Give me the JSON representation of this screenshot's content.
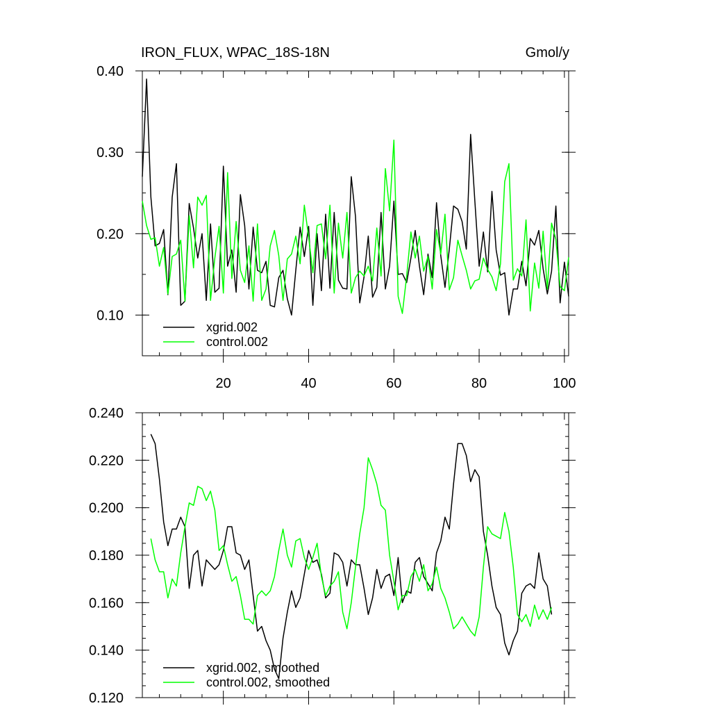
{
  "chart_data": [
    {
      "type": "line",
      "title": "IRON_FLUX, WPAC_18S-18N",
      "units": "Gmol/y",
      "xlim": [
        1,
        101
      ],
      "ylim": [
        0.05,
        0.4
      ],
      "x_ticks": [
        20,
        40,
        60,
        80,
        100
      ],
      "y_ticks": [
        "0.10",
        "0.20",
        "0.30",
        "0.40"
      ],
      "legend_position": "bottom-left",
      "series": [
        {
          "name": "xgrid.002",
          "color": "#000000",
          "x_start": 1,
          "values": [
            0.27,
            0.39,
            0.245,
            0.185,
            0.188,
            0.205,
            0.125,
            0.245,
            0.286,
            0.112,
            0.117,
            0.237,
            0.207,
            0.17,
            0.2,
            0.118,
            0.212,
            0.128,
            0.133,
            0.283,
            0.16,
            0.18,
            0.128,
            0.248,
            0.21,
            0.132,
            0.208,
            0.155,
            0.152,
            0.166,
            0.112,
            0.11,
            0.146,
            0.155,
            0.12,
            0.1,
            0.155,
            0.208,
            0.172,
            0.209,
            0.112,
            0.2,
            0.13,
            0.224,
            0.133,
            0.226,
            0.143,
            0.133,
            0.132,
            0.27,
            0.221,
            0.115,
            0.147,
            0.197,
            0.122,
            0.134,
            0.226,
            0.132,
            0.16,
            0.24,
            0.15,
            0.151,
            0.14,
            0.17,
            0.204,
            0.16,
            0.125,
            0.175,
            0.146,
            0.238,
            0.173,
            0.134,
            0.181,
            0.234,
            0.23,
            0.215,
            0.181,
            0.322,
            0.24,
            0.16,
            0.202,
            0.153,
            0.252,
            0.18,
            0.149,
            0.152,
            0.1,
            0.132,
            0.132,
            0.166,
            0.136,
            0.194,
            0.186,
            0.204,
            0.157,
            0.126,
            0.154,
            0.234,
            0.115,
            0.165,
            0.123
          ]
        },
        {
          "name": "control.002",
          "color": "#00ff00",
          "x_start": 1,
          "values": [
            0.24,
            0.21,
            0.193,
            0.195,
            0.16,
            0.183,
            0.126,
            0.172,
            0.175,
            0.192,
            0.117,
            0.222,
            0.158,
            0.245,
            0.235,
            0.247,
            0.118,
            0.17,
            0.209,
            0.127,
            0.275,
            0.145,
            0.215,
            0.155,
            0.14,
            0.185,
            0.117,
            0.212,
            0.118,
            0.132,
            0.185,
            0.204,
            0.173,
            0.118,
            0.169,
            0.175,
            0.197,
            0.163,
            0.235,
            0.196,
            0.152,
            0.21,
            0.212,
            0.169,
            0.235,
            0.127,
            0.213,
            0.17,
            0.226,
            0.127,
            0.146,
            0.154,
            0.148,
            0.16,
            0.142,
            0.207,
            0.148,
            0.28,
            0.228,
            0.315,
            0.123,
            0.102,
            0.148,
            0.202,
            0.17,
            0.197,
            0.154,
            0.172,
            0.132,
            0.205,
            0.175,
            0.224,
            0.131,
            0.146,
            0.192,
            0.173,
            0.155,
            0.132,
            0.142,
            0.144,
            0.17,
            0.156,
            0.147,
            0.13,
            0.163,
            0.264,
            0.286,
            0.143,
            0.157,
            0.148,
            0.217,
            0.105,
            0.164,
            0.133,
            0.203,
            0.132,
            0.213,
            0.193,
            0.135,
            0.13,
            0.171
          ]
        }
      ],
      "legend": [
        {
          "label": "xgrid.002",
          "color": "#000000"
        },
        {
          "label": "control.002",
          "color": "#00ff00"
        }
      ]
    },
    {
      "type": "line",
      "xlim": [
        1,
        101
      ],
      "ylim": [
        0.12,
        0.24
      ],
      "y_ticks": [
        "0.120",
        "0.140",
        "0.160",
        "0.180",
        "0.200",
        "0.220",
        "0.240"
      ],
      "legend_position": "bottom-left",
      "series": [
        {
          "name": "xgrid.002, smoothed",
          "color": "#000000",
          "x_start": 3,
          "values": [
            0.231,
            0.227,
            0.212,
            0.194,
            0.184,
            0.191,
            0.191,
            0.196,
            0.192,
            0.166,
            0.18,
            0.182,
            0.167,
            0.178,
            0.176,
            0.174,
            0.176,
            0.182,
            0.192,
            0.192,
            0.181,
            0.18,
            0.174,
            0.178,
            0.163,
            0.148,
            0.15,
            0.144,
            0.14,
            0.132,
            0.128,
            0.145,
            0.156,
            0.165,
            0.158,
            0.162,
            0.172,
            0.182,
            0.177,
            0.178,
            0.172,
            0.162,
            0.164,
            0.181,
            0.18,
            0.177,
            0.167,
            0.178,
            0.176,
            0.176,
            0.166,
            0.155,
            0.162,
            0.174,
            0.166,
            0.171,
            0.172,
            0.163,
            0.179,
            0.16,
            0.165,
            0.164,
            0.177,
            0.179,
            0.171,
            0.168,
            0.165,
            0.181,
            0.186,
            0.196,
            0.191,
            0.21,
            0.227,
            0.227,
            0.222,
            0.211,
            0.216,
            0.213,
            0.19,
            0.18,
            0.167,
            0.158,
            0.155,
            0.143,
            0.138,
            0.144,
            0.148,
            0.164,
            0.167,
            0.168,
            0.166,
            0.181,
            0.17,
            0.167,
            0.155
          ]
        },
        {
          "name": "control.002, smoothed",
          "color": "#00ff00",
          "x_start": 3,
          "values": [
            0.187,
            0.178,
            0.173,
            0.173,
            0.162,
            0.17,
            0.167,
            0.181,
            0.192,
            0.202,
            0.201,
            0.209,
            0.208,
            0.203,
            0.207,
            0.199,
            0.182,
            0.184,
            0.176,
            0.169,
            0.171,
            0.163,
            0.153,
            0.153,
            0.151,
            0.163,
            0.165,
            0.163,
            0.165,
            0.171,
            0.182,
            0.191,
            0.18,
            0.175,
            0.186,
            0.187,
            0.179,
            0.174,
            0.179,
            0.185,
            0.171,
            0.163,
            0.167,
            0.169,
            0.173,
            0.156,
            0.149,
            0.16,
            0.175,
            0.189,
            0.2,
            0.221,
            0.216,
            0.21,
            0.201,
            0.199,
            0.18,
            0.169,
            0.157,
            0.163,
            0.163,
            0.171,
            0.174,
            0.169,
            0.176,
            0.165,
            0.168,
            0.175,
            0.166,
            0.162,
            0.156,
            0.149,
            0.151,
            0.154,
            0.151,
            0.148,
            0.146,
            0.154,
            0.175,
            0.192,
            0.189,
            0.188,
            0.187,
            0.198,
            0.19,
            0.175,
            0.155,
            0.152,
            0.155,
            0.15,
            0.159,
            0.153,
            0.157,
            0.153,
            0.158
          ]
        }
      ],
      "legend": [
        {
          "label": "xgrid.002, smoothed",
          "color": "#000000"
        },
        {
          "label": "control.002, smoothed",
          "color": "#00ff00"
        }
      ]
    }
  ]
}
